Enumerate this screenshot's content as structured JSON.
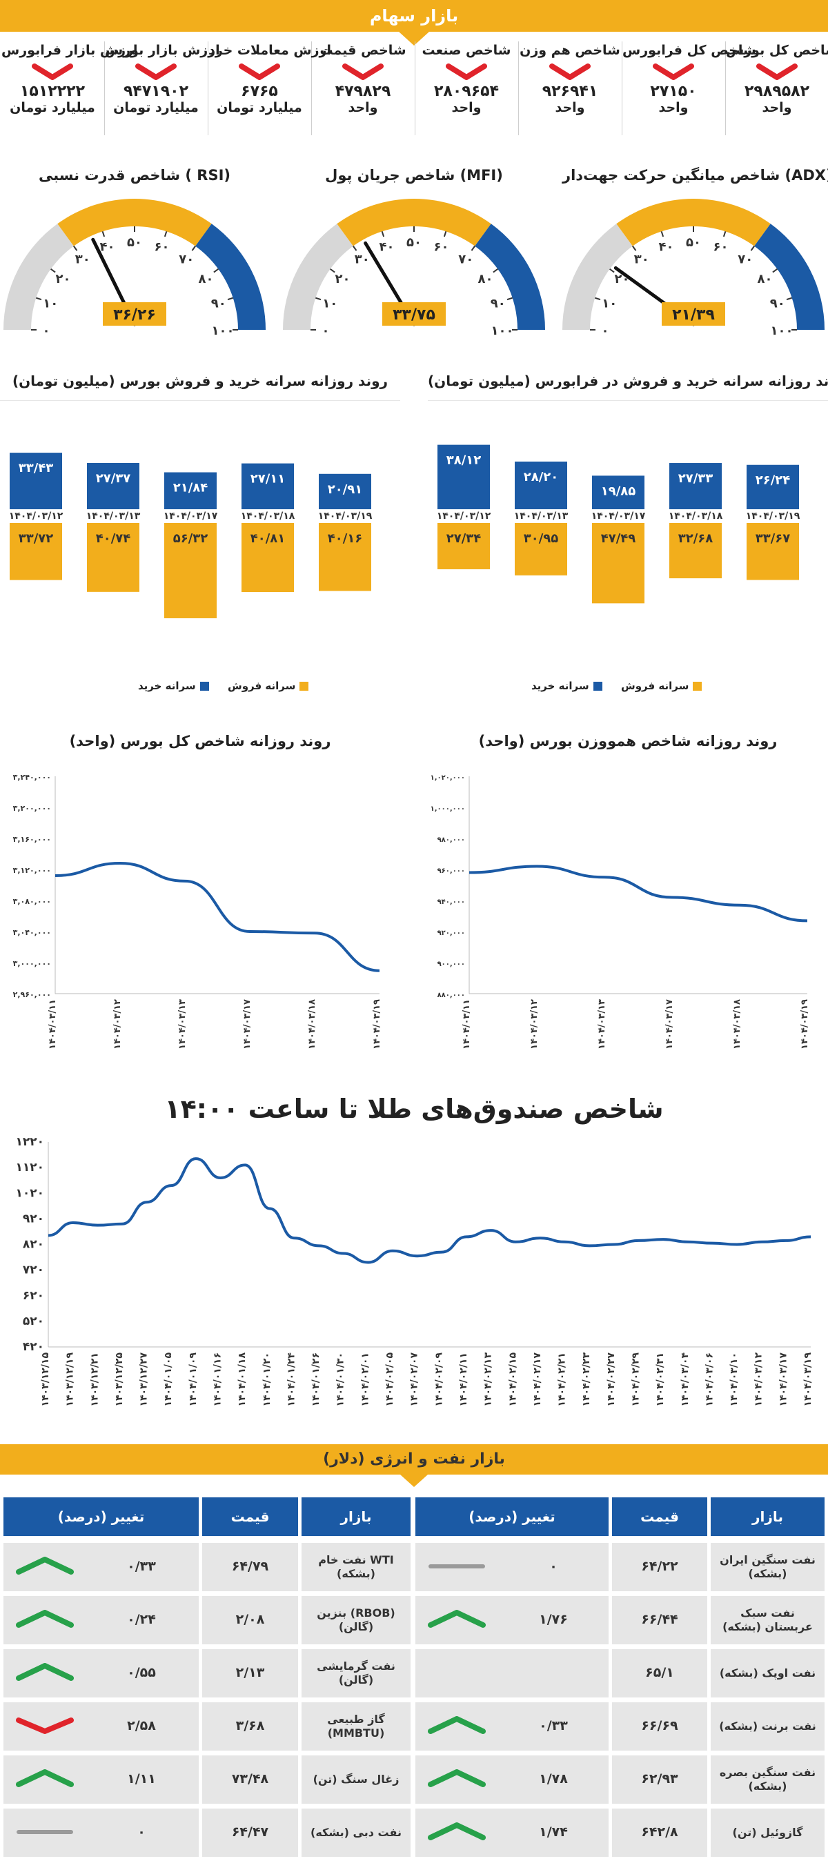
{
  "header": {
    "title": "بازار سهام"
  },
  "stats": [
    {
      "title": "شاخص کل بورس",
      "value": "۲۹۸۹۵۸۲",
      "unit": "واحد",
      "trend": "down"
    },
    {
      "title": "شاخص کل فرابورس",
      "value": "۲۷۱۵۰",
      "unit": "واحد",
      "trend": "down"
    },
    {
      "title": "شاخص هم وزن",
      "value": "۹۲۶۹۴۱",
      "unit": "واحد",
      "trend": "down"
    },
    {
      "title": "شاخص صنعت",
      "value": "۲۸۰۹۶۵۴",
      "unit": "واحد",
      "trend": "down"
    },
    {
      "title": "شاخص قیمت",
      "value": "۴۷۹۸۲۹",
      "unit": "واحد",
      "trend": "down"
    },
    {
      "title": "ارزش معاملات خرد",
      "value": "۶۷۶۵",
      "unit": "میلیارد تومان",
      "trend": "down"
    },
    {
      "title": "ارزش بازار بورس",
      "value": "۹۴۷۱۹۰۲",
      "unit": "میلیارد تومان",
      "trend": "down"
    },
    {
      "title": "ارزش بازار فرابورس",
      "value": "۱۵۱۲۲۲۲",
      "unit": "میلیارد تومان",
      "trend": "down"
    }
  ],
  "gauges": [
    {
      "title": "شاخص میانگین حرکت جهت‌دار (ADX)",
      "value": 21.39,
      "label": "۲۱/۳۹"
    },
    {
      "title": "شاخص جریان پول (MFI)",
      "value": 33.75,
      "label": "۳۳/۷۵"
    },
    {
      "title": "شاخص قدرت نسبی ( RSI)",
      "value": 36.26,
      "label": "۳۶/۲۶"
    }
  ],
  "gauge_ticks": [
    "۰",
    "۱۰",
    "۲۰",
    "۳۰",
    "۴۰",
    "۵۰",
    "۶۰",
    "۷۰",
    "۸۰",
    "۹۰",
    "۱۰۰"
  ],
  "colors": {
    "accent": "#f2ae1c",
    "blue": "#1b5aa5",
    "red": "#e0242b",
    "green": "#27a14a",
    "gray": "#9a9a9a"
  },
  "bar_charts": [
    {
      "title": "روند روزانه سرانه خرید و فروش در فرابورس (میلیون تومان)",
      "type": "bar",
      "categories": [
        "۱۴۰۴/۰۳/۱۹",
        "۱۴۰۴/۰۳/۱۸",
        "۱۴۰۴/۰۳/۱۷",
        "۱۴۰۴/۰۳/۱۳",
        "۱۴۰۴/۰۳/۱۲"
      ],
      "buy_values": [
        26.24,
        27.33,
        19.85,
        28.2,
        38.12
      ],
      "buy_labels": [
        "۲۶/۲۴",
        "۲۷/۳۳",
        "۱۹/۸۵",
        "۲۸/۲۰",
        "۳۸/۱۲"
      ],
      "sell_values": [
        33.67,
        32.68,
        47.49,
        30.95,
        27.34
      ],
      "sell_labels": [
        "۳۳/۶۷",
        "۳۲/۶۸",
        "۴۷/۴۹",
        "۳۰/۹۵",
        "۲۷/۳۴"
      ],
      "legend": {
        "buy": "سرانه خرید",
        "sell": "سرانه فروش"
      }
    },
    {
      "title": "روند روزانه سرانه خرید و فروش بورس (میلیون تومان)",
      "type": "bar",
      "categories": [
        "۱۴۰۴/۰۳/۱۹",
        "۱۴۰۴/۰۳/۱۸",
        "۱۴۰۴/۰۳/۱۷",
        "۱۴۰۴/۰۳/۱۳",
        "۱۴۰۴/۰۳/۱۲"
      ],
      "buy_values": [
        20.91,
        27.11,
        21.84,
        27.37,
        33.43
      ],
      "buy_labels": [
        "۲۰/۹۱",
        "۲۷/۱۱",
        "۲۱/۸۴",
        "۲۷/۳۷",
        "۳۳/۴۳"
      ],
      "sell_values": [
        40.16,
        40.81,
        56.32,
        40.74,
        33.72
      ],
      "sell_labels": [
        "۴۰/۱۶",
        "۴۰/۸۱",
        "۵۶/۳۲",
        "۴۰/۷۴",
        "۳۳/۷۲"
      ],
      "legend": {
        "buy": "سرانه خرید",
        "sell": "سرانه فروش"
      }
    }
  ],
  "chart_data": [
    {
      "type": "line",
      "title": "روند روزانه شاخص همووزن بورس (واحد)",
      "categories": [
        "۱۴۰۴/۰۳/۱۱",
        "۱۴۰۴/۰۳/۱۲",
        "۱۴۰۴/۰۳/۱۳",
        "۱۴۰۴/۰۳/۱۷",
        "۱۴۰۴/۰۳/۱۸",
        "۱۴۰۴/۰۳/۱۹"
      ],
      "values": [
        958000,
        962000,
        955000,
        942000,
        937000,
        926941
      ],
      "ylim": [
        880000,
        1020000
      ],
      "yticks": [
        880000,
        900000,
        920000,
        940000,
        960000,
        980000,
        1000000,
        1020000
      ],
      "ytick_labels": [
        "۸۸۰,۰۰۰",
        "۹۰۰,۰۰۰",
        "۹۲۰,۰۰۰",
        "۹۴۰,۰۰۰",
        "۹۶۰,۰۰۰",
        "۹۸۰,۰۰۰",
        "۱,۰۰۰,۰۰۰",
        "۱,۰۲۰,۰۰۰"
      ]
    },
    {
      "type": "line",
      "title": "روند روزانه شاخص کل بورس (واحد)",
      "categories": [
        "۱۴۰۴/۰۳/۱۱",
        "۱۴۰۴/۰۳/۱۲",
        "۱۴۰۴/۰۳/۱۳",
        "۱۴۰۴/۰۳/۱۷",
        "۱۴۰۴/۰۳/۱۸",
        "۱۴۰۴/۰۳/۱۹"
      ],
      "values": [
        3112000,
        3128000,
        3105000,
        3040000,
        3038000,
        2989582
      ],
      "ylim": [
        2960000,
        3240000
      ],
      "yticks": [
        2960000,
        3000000,
        3040000,
        3080000,
        3120000,
        3160000,
        3200000,
        3240000
      ],
      "ytick_labels": [
        "۲,۹۶۰,۰۰۰",
        "۳,۰۰۰,۰۰۰",
        "۳,۰۴۰,۰۰۰",
        "۳,۰۸۰,۰۰۰",
        "۳,۱۲۰,۰۰۰",
        "۳,۱۶۰,۰۰۰",
        "۳,۲۰۰,۰۰۰",
        "۳,۲۴۰,۰۰۰"
      ]
    },
    {
      "type": "line",
      "title": "شاخص صندوق‌های طلا تا ساعت ۱۴:۰۰",
      "categories": [
        "۱۴۰۳/۱۲/۱۵",
        "۱۴۰۳/۱۲/۱۹",
        "۱۴۰۳/۱۲/۲۱",
        "۱۴۰۳/۱۲/۲۵",
        "۱۴۰۳/۱۲/۲۷",
        "۱۴۰۴/۰۱/۰۵",
        "۱۴۰۴/۰۱/۰۹",
        "۱۴۰۴/۰۱/۱۶",
        "۱۴۰۴/۰۱/۱۸",
        "۱۴۰۴/۰۱/۲۰",
        "۱۴۰۴/۰۱/۲۴",
        "۱۴۰۴/۰۱/۲۶",
        "۱۴۰۴/۰۱/۳۰",
        "۱۴۰۴/۰۲/۰۱",
        "۱۴۰۴/۰۲/۰۵",
        "۱۴۰۴/۰۲/۰۷",
        "۱۴۰۴/۰۲/۰۹",
        "۱۴۰۴/۰۲/۱۱",
        "۱۴۰۴/۰۲/۱۳",
        "۱۴۰۴/۰۲/۱۵",
        "۱۴۰۴/۰۲/۱۷",
        "۱۴۰۴/۰۲/۲۱",
        "۱۴۰۴/۰۲/۲۳",
        "۱۴۰۴/۰۲/۲۷",
        "۱۴۰۴/۰۲/۲۹",
        "۱۴۰۴/۰۲/۳۱",
        "۱۴۰۴/۰۳/۰۴",
        "۱۴۰۴/۰۳/۰۶",
        "۱۴۰۴/۰۳/۱۰",
        "۱۴۰۴/۰۳/۱۲",
        "۱۴۰۴/۰۳/۱۷",
        "۱۴۰۴/۰۳/۱۹"
      ],
      "values": [
        855,
        905,
        895,
        900,
        985,
        1050,
        1155,
        1080,
        1130,
        960,
        845,
        815,
        785,
        750,
        795,
        775,
        790,
        850,
        875,
        830,
        845,
        830,
        815,
        820,
        835,
        840,
        830,
        825,
        820,
        830,
        835,
        850
      ],
      "ylim": [
        420,
        1220
      ],
      "yticks": [
        420,
        520,
        620,
        720,
        820,
        920,
        1020,
        1120,
        1220
      ],
      "ytick_labels": [
        "۴۲۰",
        "۵۲۰",
        "۶۲۰",
        "۷۲۰",
        "۸۲۰",
        "۹۲۰",
        "۱۰۲۰",
        "۱۱۲۰",
        "۱۲۲۰"
      ]
    }
  ],
  "energy": {
    "title": "بازار نفت و انرژی (دلار)",
    "headers": {
      "market": "بازار",
      "price": "قیمت",
      "change": "تغییر (درصد)"
    },
    "right": [
      {
        "market": "نفت سنگین ایران (بشکه)",
        "price": "۶۴/۲۲",
        "change": "۰",
        "trend": "flat"
      },
      {
        "market": "نفت سبک عربستان (بشکه)",
        "price": "۶۶/۴۴",
        "change": "۱/۷۶",
        "trend": "up"
      },
      {
        "market": "نفت اوپک (بشکه)",
        "price": "۶۵/۱",
        "change": "",
        "trend": "none"
      },
      {
        "market": "نفت برنت (بشکه)",
        "price": "۶۶/۶۹",
        "change": "۰/۳۳",
        "trend": "up"
      },
      {
        "market": "نفت سنگین بصره (بشکه)",
        "price": "۶۲/۹۳",
        "change": "۱/۷۸",
        "trend": "up"
      },
      {
        "market": "گازوئیل (تن)",
        "price": "۶۴۲/۸",
        "change": "۱/۷۴",
        "trend": "up"
      }
    ],
    "left": [
      {
        "market": "نفت خام WTI (بشکه)",
        "price": "۶۴/۷۹",
        "change": "۰/۳۳",
        "trend": "up"
      },
      {
        "market": "بنزین (RBOB) (گالن)",
        "price": "۲/۰۸",
        "change": "۰/۲۴",
        "trend": "up"
      },
      {
        "market": "نفت گرمایشی (گالن)",
        "price": "۲/۱۳",
        "change": "۰/۵۵",
        "trend": "up"
      },
      {
        "market": "گاز طبیعی (MMBTU)",
        "price": "۳/۶۸",
        "change": "۲/۵۸",
        "trend": "down"
      },
      {
        "market": "زغال سنگ (تن)",
        "price": "۷۳/۴۸",
        "change": "۱/۱۱",
        "trend": "up"
      },
      {
        "market": "نفت دبی (بشکه)",
        "price": "۶۴/۴۷",
        "change": "۰",
        "trend": "flat"
      }
    ]
  }
}
